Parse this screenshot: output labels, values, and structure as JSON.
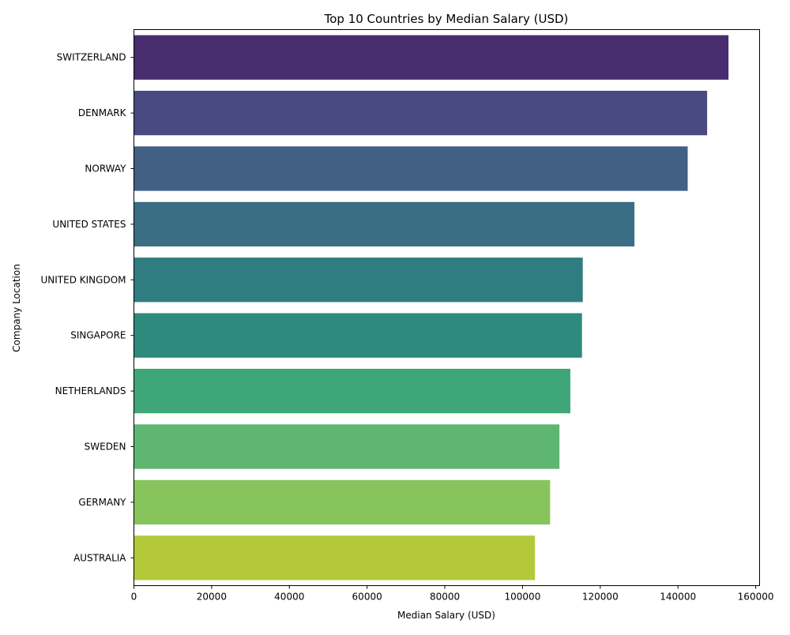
{
  "chart_data": {
    "type": "bar",
    "orientation": "horizontal",
    "title": "Top 10 Countries by Median Salary (USD)",
    "xlabel": "Median Salary (USD)",
    "ylabel": "Company Location",
    "xlim": [
      0,
      161000
    ],
    "xticks": [
      0,
      20000,
      40000,
      60000,
      80000,
      100000,
      120000,
      140000,
      160000
    ],
    "xtick_labels": [
      "0",
      "20000",
      "40000",
      "60000",
      "80000",
      "100000",
      "120000",
      "140000",
      "160000"
    ],
    "grid": false,
    "legend": "none",
    "categories": [
      "SWITZERLAND",
      "DENMARK",
      "NORWAY",
      "UNITED STATES",
      "UNITED KINGDOM",
      "SINGAPORE",
      "NETHERLANDS",
      "SWEDEN",
      "GERMANY",
      "AUSTRALIA"
    ],
    "values": [
      153000,
      147500,
      142500,
      128800,
      115500,
      115300,
      112300,
      109500,
      107100,
      103200
    ],
    "colors": [
      "#472c6e",
      "#484a80",
      "#425f84",
      "#3a6e84",
      "#2f7d81",
      "#2e8a7d",
      "#3ea678",
      "#5fb670",
      "#88c45c",
      "#b3c93a"
    ]
  }
}
